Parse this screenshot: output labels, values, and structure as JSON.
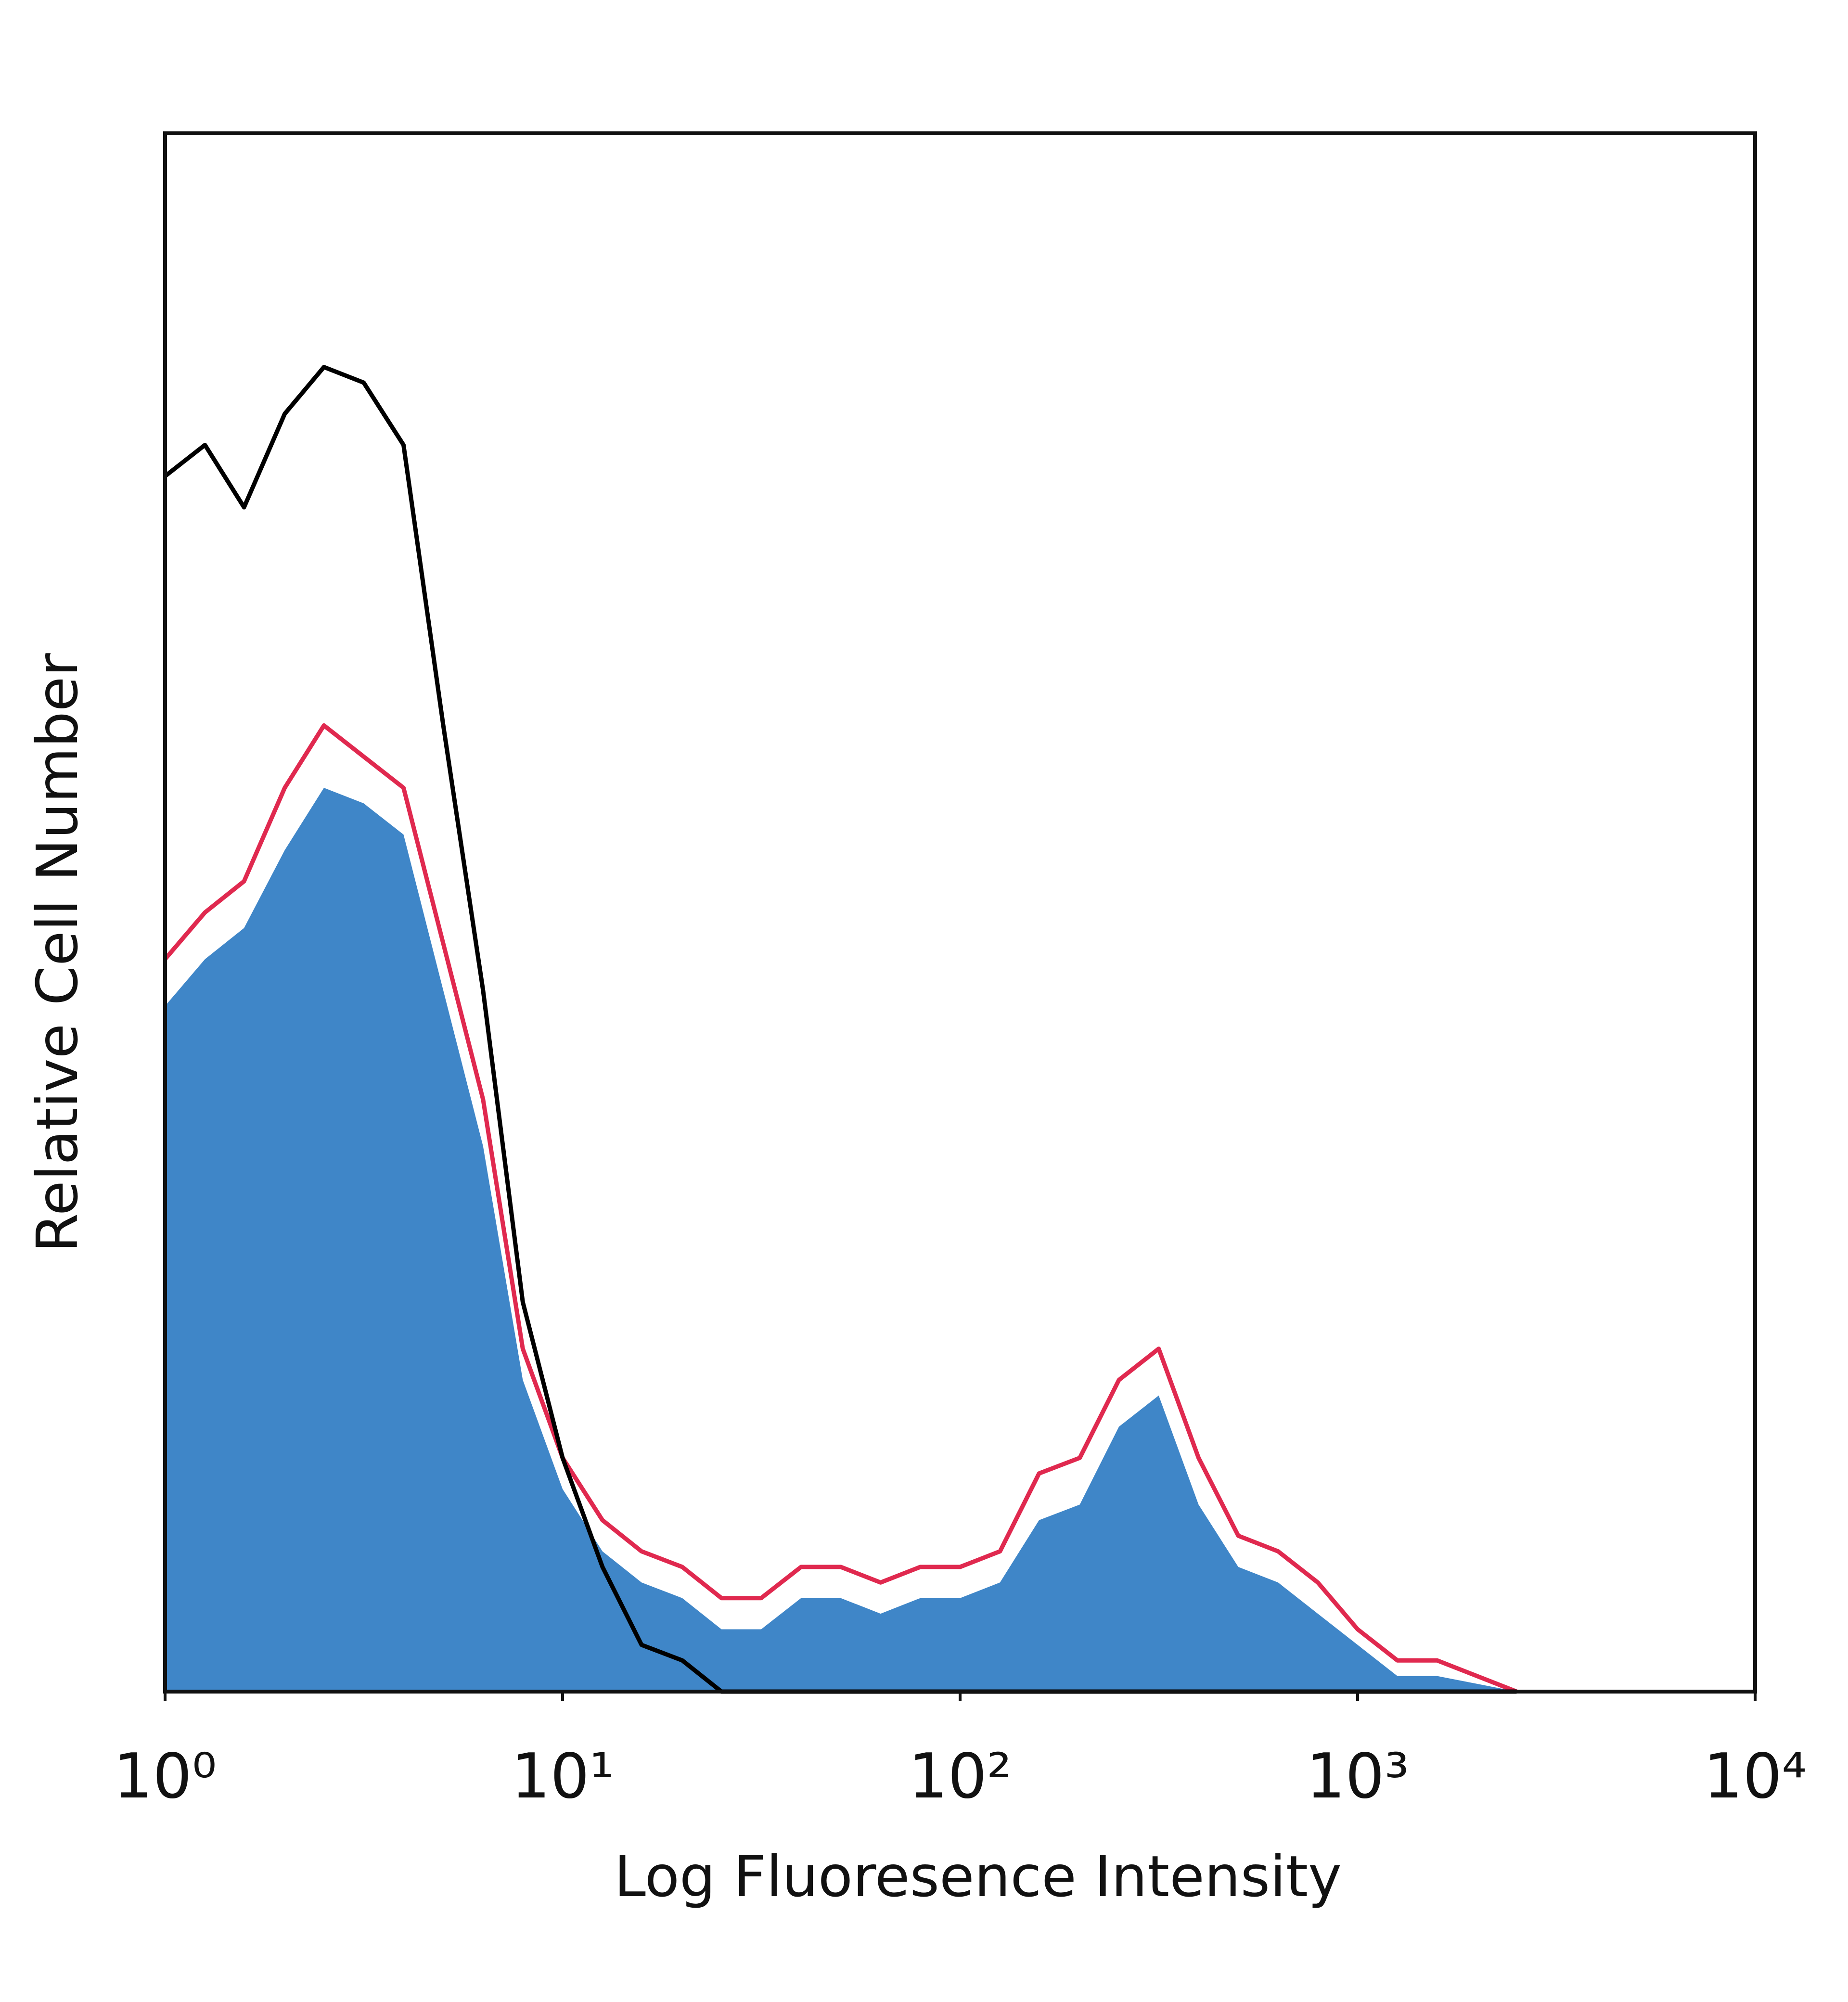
{
  "chart_data": {
    "type": "histogram-overlay",
    "x_label": "Log Fluoresence Intensity",
    "y_label": "Relative Cell Number",
    "log_x": true,
    "xlim": [
      1,
      10000
    ],
    "ylim": [
      0,
      100
    ],
    "xticks": [
      {
        "value": 1,
        "label": "10⁰"
      },
      {
        "value": 10,
        "label": "10¹"
      },
      {
        "value": 100,
        "label": "10²"
      },
      {
        "value": 1000,
        "label": "10³"
      },
      {
        "value": 10000,
        "label": "10⁴"
      }
    ],
    "x": [
      1,
      1.26,
      1.58,
      2,
      2.51,
      3.16,
      3.98,
      5.01,
      6.31,
      7.94,
      10,
      12.6,
      15.8,
      20,
      25.1,
      31.6,
      39.8,
      50.1,
      63.1,
      79.4,
      100,
      126,
      158,
      200,
      251,
      316,
      398,
      501,
      631,
      794,
      1000,
      1259,
      1585,
      1995,
      2512
    ],
    "series": [
      {
        "color": "#3f86c8",
        "fill": true,
        "values": [
          44,
          47,
          49,
          54,
          58,
          57,
          55,
          45,
          35,
          20,
          13,
          9,
          7,
          6,
          4,
          4,
          6,
          6,
          5,
          6,
          6,
          7,
          11,
          12,
          17,
          19,
          12,
          8,
          7,
          5,
          3,
          1,
          1,
          0.5,
          0
        ]
      },
      {
        "color": "#e0294f",
        "fill": false,
        "values": [
          47,
          50,
          52,
          58,
          62,
          60,
          58,
          48,
          38,
          22,
          15,
          11,
          9,
          8,
          6,
          6,
          8,
          8,
          7,
          8,
          8,
          9,
          14,
          15,
          20,
          22,
          15,
          10,
          9,
          7,
          4,
          2,
          2,
          1,
          0
        ]
      },
      {
        "color": "#000000",
        "fill": false,
        "values": [
          78,
          80,
          76,
          82,
          85,
          84,
          80,
          62,
          45,
          25,
          15,
          8,
          3,
          2,
          0,
          0,
          0,
          0,
          0,
          0,
          0,
          0,
          0,
          0,
          0,
          0,
          0,
          0,
          0,
          0,
          0,
          0,
          0,
          0,
          0
        ]
      }
    ]
  }
}
